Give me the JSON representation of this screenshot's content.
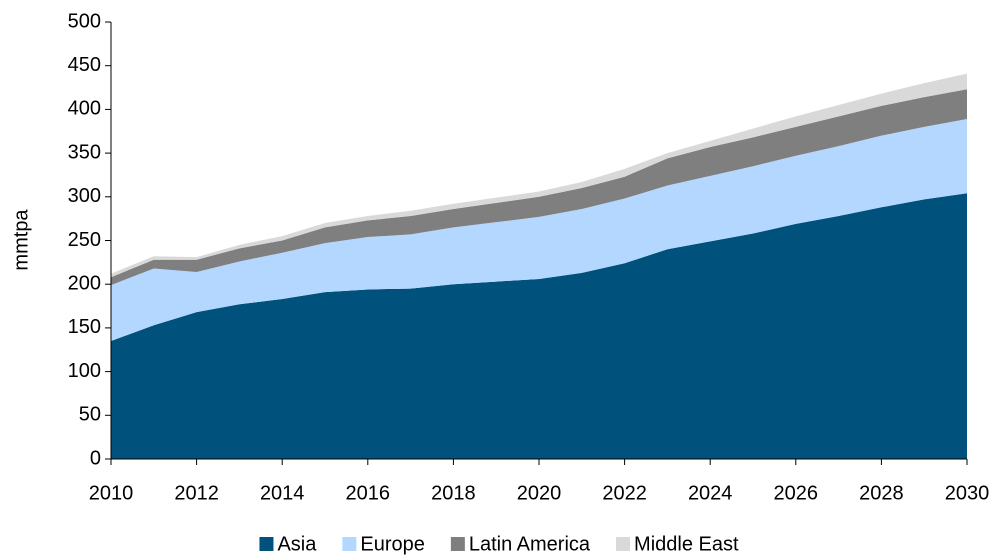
{
  "chart_data": {
    "type": "area",
    "stacked": true,
    "y_label": "mmtpa",
    "x": [
      2010,
      2011,
      2012,
      2013,
      2014,
      2015,
      2016,
      2017,
      2018,
      2019,
      2020,
      2021,
      2022,
      2023,
      2024,
      2025,
      2026,
      2027,
      2028,
      2029,
      2030
    ],
    "series": [
      {
        "name": "Asia",
        "color": "#00527c",
        "values": [
          135,
          153,
          168,
          177,
          183,
          191,
          194,
          195,
          200,
          203,
          206,
          213,
          224,
          240,
          249,
          258,
          269,
          278,
          288,
          297,
          304
        ]
      },
      {
        "name": "Europe",
        "color": "#b3d7ff",
        "values": [
          64,
          65,
          46,
          49,
          53,
          56,
          60,
          62,
          65,
          68,
          71,
          73,
          74,
          73,
          75,
          77,
          78,
          80,
          82,
          83,
          85
        ]
      },
      {
        "name": "Latin America",
        "color": "#7f7f7f",
        "values": [
          9,
          10,
          14,
          15,
          14,
          18,
          19,
          21,
          21,
          22,
          23,
          24,
          25,
          31,
          33,
          33,
          33,
          34,
          34,
          34,
          34
        ]
      },
      {
        "name": "Middle East",
        "color": "#d9d9d9",
        "values": [
          4,
          4,
          3,
          4,
          5,
          5,
          5,
          6,
          6,
          6,
          6,
          7,
          9,
          6,
          7,
          10,
          12,
          13,
          14,
          16,
          18
        ]
      }
    ],
    "xlim": [
      2010,
      2030
    ],
    "xticks": [
      2010,
      2012,
      2014,
      2016,
      2018,
      2020,
      2022,
      2024,
      2026,
      2028,
      2030
    ],
    "ylim": [
      0,
      500
    ],
    "yticks": [
      0,
      50,
      100,
      150,
      200,
      250,
      300,
      350,
      400,
      450,
      500
    ],
    "legend": "bottom"
  }
}
